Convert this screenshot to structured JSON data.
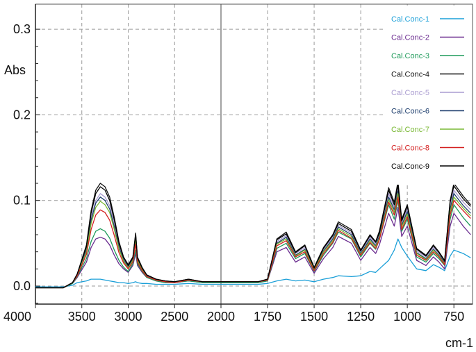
{
  "chart_data": {
    "type": "line",
    "title": "",
    "xlabel": "cm-1",
    "ylabel": "Abs",
    "xlim": [
      4000,
      650
    ],
    "ylim": [
      -0.02,
      0.32
    ],
    "x_reversed": true,
    "grid": true,
    "legend_position": "top-right",
    "x_ticks": [
      4000,
      3500,
      3000,
      2500,
      2000,
      1750,
      1500,
      1250,
      1000,
      750
    ],
    "x_tick_labels": [
      "4000",
      "3500",
      "3000",
      "2500",
      "2000",
      "1750",
      "1500",
      "1250",
      "1000",
      "750"
    ],
    "y_ticks": [
      0.0,
      0.1,
      0.2,
      0.3
    ],
    "y_tick_labels": [
      "0.0",
      "0.1",
      "0.2",
      "0.3"
    ],
    "x": [
      4000,
      3700,
      3600,
      3550,
      3450,
      3400,
      3350,
      3300,
      3250,
      3200,
      3150,
      3100,
      3050,
      3000,
      2950,
      2920,
      2900,
      2850,
      2800,
      2700,
      2600,
      2500,
      2350,
      2200,
      2000,
      1800,
      1750,
      1700,
      1650,
      1600,
      1550,
      1500,
      1450,
      1400,
      1370,
      1300,
      1250,
      1200,
      1170,
      1150,
      1100,
      1070,
      1050,
      1030,
      1000,
      950,
      900,
      860,
      830,
      800,
      770,
      750,
      700,
      660
    ],
    "series": [
      {
        "name": "Cal.Conc-1",
        "color": "#1a9fd8",
        "values": [
          -0.001,
          -0.001,
          0.001,
          0.004,
          0.006,
          0.008,
          0.008,
          0.008,
          0.007,
          0.006,
          0.005,
          0.004,
          0.004,
          0.003,
          0.004,
          0.005,
          0.004,
          0.003,
          0.003,
          0.002,
          0.002,
          0.002,
          0.003,
          0.002,
          0.002,
          0.002,
          0.003,
          0.006,
          0.008,
          0.006,
          0.007,
          0.005,
          0.008,
          0.01,
          0.012,
          0.011,
          0.012,
          0.017,
          0.016,
          0.02,
          0.03,
          0.042,
          0.055,
          0.045,
          0.035,
          0.02,
          0.018,
          0.025,
          0.022,
          0.018,
          0.035,
          0.042,
          0.038,
          0.033
        ]
      },
      {
        "name": "Cal.Conc-2",
        "color": "#6a2b8f",
        "values": [
          -0.002,
          -0.002,
          0.003,
          0.01,
          0.028,
          0.045,
          0.055,
          0.057,
          0.055,
          0.048,
          0.036,
          0.026,
          0.02,
          0.016,
          0.024,
          0.038,
          0.024,
          0.016,
          0.01,
          0.006,
          0.004,
          0.004,
          0.006,
          0.004,
          0.004,
          0.004,
          0.006,
          0.04,
          0.045,
          0.028,
          0.034,
          0.015,
          0.032,
          0.045,
          0.058,
          0.05,
          0.03,
          0.045,
          0.038,
          0.048,
          0.085,
          0.07,
          0.092,
          0.058,
          0.07,
          0.03,
          0.024,
          0.034,
          0.028,
          0.02,
          0.07,
          0.085,
          0.07,
          0.06
        ]
      },
      {
        "name": "Cal.Conc-3",
        "color": "#1e9a5a",
        "values": [
          -0.002,
          -0.002,
          0.003,
          0.011,
          0.032,
          0.052,
          0.064,
          0.067,
          0.064,
          0.056,
          0.042,
          0.03,
          0.022,
          0.017,
          0.026,
          0.042,
          0.026,
          0.017,
          0.01,
          0.006,
          0.004,
          0.004,
          0.006,
          0.004,
          0.004,
          0.004,
          0.006,
          0.044,
          0.05,
          0.032,
          0.038,
          0.017,
          0.036,
          0.05,
          0.063,
          0.055,
          0.034,
          0.05,
          0.043,
          0.054,
          0.095,
          0.078,
          0.1,
          0.064,
          0.078,
          0.034,
          0.028,
          0.038,
          0.032,
          0.024,
          0.078,
          0.095,
          0.08,
          0.07
        ]
      },
      {
        "name": "Cal.Conc-4",
        "color": "#111111",
        "values": [
          -0.002,
          -0.002,
          0.004,
          0.014,
          0.048,
          0.088,
          0.112,
          0.12,
          0.116,
          0.104,
          0.08,
          0.052,
          0.034,
          0.025,
          0.034,
          0.062,
          0.034,
          0.022,
          0.013,
          0.008,
          0.006,
          0.005,
          0.008,
          0.005,
          0.005,
          0.005,
          0.008,
          0.055,
          0.063,
          0.04,
          0.048,
          0.022,
          0.045,
          0.06,
          0.075,
          0.066,
          0.042,
          0.06,
          0.052,
          0.064,
          0.115,
          0.098,
          0.122,
          0.078,
          0.095,
          0.044,
          0.036,
          0.048,
          0.04,
          0.03,
          0.1,
          0.12,
          0.105,
          0.095
        ]
      },
      {
        "name": "Cal.Conc-5",
        "color": "#a99bd0",
        "values": [
          -0.002,
          -0.002,
          0.004,
          0.013,
          0.044,
          0.08,
          0.1,
          0.108,
          0.104,
          0.094,
          0.072,
          0.047,
          0.031,
          0.023,
          0.032,
          0.057,
          0.032,
          0.021,
          0.012,
          0.007,
          0.005,
          0.005,
          0.007,
          0.005,
          0.005,
          0.005,
          0.007,
          0.052,
          0.059,
          0.038,
          0.045,
          0.021,
          0.043,
          0.057,
          0.071,
          0.062,
          0.04,
          0.057,
          0.049,
          0.06,
          0.108,
          0.092,
          0.115,
          0.074,
          0.09,
          0.041,
          0.034,
          0.045,
          0.038,
          0.028,
          0.094,
          0.112,
          0.098,
          0.089
        ]
      },
      {
        "name": "Cal.Conc-6",
        "color": "#1f3f6e",
        "values": [
          -0.002,
          -0.002,
          0.004,
          0.013,
          0.042,
          0.077,
          0.097,
          0.104,
          0.1,
          0.09,
          0.069,
          0.045,
          0.03,
          0.022,
          0.031,
          0.055,
          0.031,
          0.02,
          0.012,
          0.007,
          0.005,
          0.005,
          0.007,
          0.005,
          0.005,
          0.005,
          0.007,
          0.05,
          0.057,
          0.036,
          0.043,
          0.02,
          0.041,
          0.055,
          0.069,
          0.06,
          0.038,
          0.055,
          0.047,
          0.058,
          0.104,
          0.089,
          0.111,
          0.071,
          0.087,
          0.039,
          0.032,
          0.043,
          0.036,
          0.027,
          0.09,
          0.108,
          0.094,
          0.085
        ]
      },
      {
        "name": "Cal.Conc-7",
        "color": "#79b833",
        "values": [
          -0.002,
          -0.002,
          0.004,
          0.012,
          0.04,
          0.073,
          0.092,
          0.099,
          0.095,
          0.086,
          0.066,
          0.043,
          0.029,
          0.021,
          0.03,
          0.053,
          0.03,
          0.019,
          0.011,
          0.007,
          0.005,
          0.005,
          0.007,
          0.005,
          0.005,
          0.005,
          0.007,
          0.049,
          0.055,
          0.035,
          0.042,
          0.019,
          0.04,
          0.053,
          0.067,
          0.058,
          0.037,
          0.053,
          0.046,
          0.056,
          0.101,
          0.086,
          0.108,
          0.069,
          0.084,
          0.038,
          0.031,
          0.042,
          0.035,
          0.026,
          0.087,
          0.104,
          0.091,
          0.082
        ]
      },
      {
        "name": "Cal.Conc-8",
        "color": "#d42020",
        "values": [
          -0.002,
          -0.002,
          0.004,
          0.012,
          0.037,
          0.066,
          0.083,
          0.089,
          0.086,
          0.077,
          0.059,
          0.039,
          0.027,
          0.02,
          0.028,
          0.049,
          0.028,
          0.018,
          0.011,
          0.007,
          0.005,
          0.004,
          0.007,
          0.005,
          0.005,
          0.005,
          0.007,
          0.047,
          0.053,
          0.034,
          0.04,
          0.018,
          0.038,
          0.051,
          0.065,
          0.056,
          0.036,
          0.051,
          0.044,
          0.054,
          0.098,
          0.083,
          0.104,
          0.066,
          0.081,
          0.036,
          0.03,
          0.04,
          0.034,
          0.025,
          0.083,
          0.1,
          0.088,
          0.079
        ]
      },
      {
        "name": "Cal.Conc-9",
        "color": "#000000",
        "values": [
          -0.002,
          -0.002,
          0.004,
          0.014,
          0.046,
          0.085,
          0.108,
          0.116,
          0.112,
          0.1,
          0.077,
          0.05,
          0.033,
          0.024,
          0.033,
          0.06,
          0.033,
          0.021,
          0.013,
          0.008,
          0.006,
          0.005,
          0.008,
          0.005,
          0.005,
          0.005,
          0.008,
          0.054,
          0.061,
          0.039,
          0.047,
          0.021,
          0.044,
          0.059,
          0.073,
          0.064,
          0.041,
          0.059,
          0.051,
          0.062,
          0.112,
          0.095,
          0.118,
          0.076,
          0.093,
          0.043,
          0.035,
          0.047,
          0.039,
          0.029,
          0.098,
          0.117,
          0.102,
          0.093
        ]
      }
    ]
  }
}
